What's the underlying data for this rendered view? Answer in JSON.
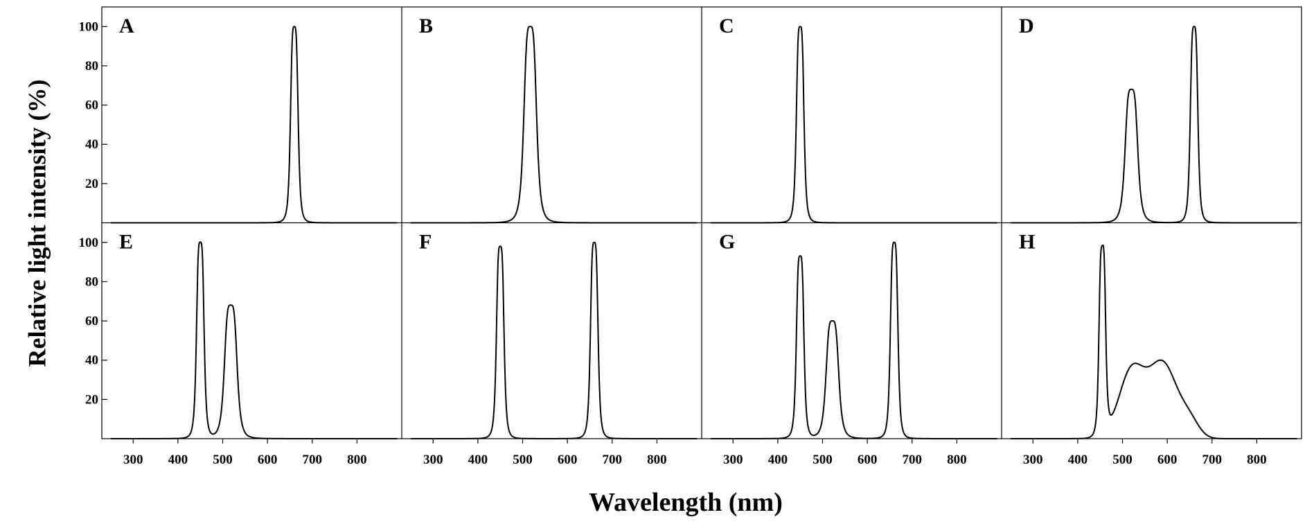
{
  "chart_data": {
    "type": "line",
    "xlabel": "Wavelength (nm)",
    "ylabel": "Relative light intensity (%)",
    "xlim": [
      230,
      900
    ],
    "ylim": [
      0,
      110
    ],
    "xticks": [
      300,
      400,
      500,
      600,
      700,
      800
    ],
    "yticks": [
      20,
      40,
      60,
      80,
      100
    ],
    "grid": false,
    "panels": [
      {
        "label": "A",
        "peaks": [
          {
            "center": 660,
            "height": 100,
            "width": 9
          }
        ],
        "broad": []
      },
      {
        "label": "B",
        "peaks": [
          {
            "center": 517,
            "height": 100,
            "width": 15
          }
        ],
        "broad": []
      },
      {
        "label": "C",
        "peaks": [
          {
            "center": 450,
            "height": 100,
            "width": 9
          }
        ],
        "broad": []
      },
      {
        "label": "D",
        "peaks": [
          {
            "center": 520,
            "height": 68,
            "width": 15
          },
          {
            "center": 660,
            "height": 100,
            "width": 9
          }
        ],
        "broad": []
      },
      {
        "label": "E",
        "peaks": [
          {
            "center": 450,
            "height": 100,
            "width": 9
          },
          {
            "center": 518,
            "height": 68,
            "width": 15
          }
        ],
        "broad": []
      },
      {
        "label": "F",
        "peaks": [
          {
            "center": 450,
            "height": 98,
            "width": 9
          },
          {
            "center": 660,
            "height": 100,
            "width": 9
          }
        ],
        "broad": []
      },
      {
        "label": "G",
        "peaks": [
          {
            "center": 450,
            "height": 93,
            "width": 9
          },
          {
            "center": 522,
            "height": 60,
            "width": 15
          },
          {
            "center": 660,
            "height": 100,
            "width": 9
          }
        ],
        "broad": []
      },
      {
        "label": "H",
        "peaks": [
          {
            "center": 455,
            "height": 96,
            "width": 8
          }
        ],
        "broad": [
          {
            "center": 520,
            "height": 34,
            "width": 40
          },
          {
            "center": 590,
            "height": 38,
            "width": 45
          },
          {
            "center": 650,
            "height": 8,
            "width": 30
          }
        ]
      }
    ]
  }
}
